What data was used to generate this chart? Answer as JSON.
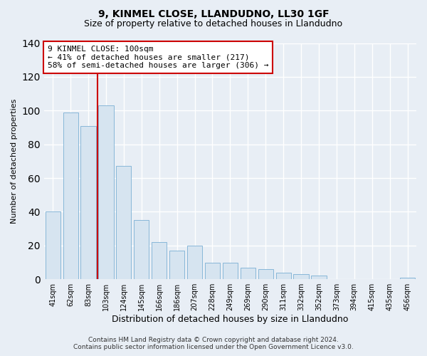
{
  "title": "9, KINMEL CLOSE, LLANDUDNO, LL30 1GF",
  "subtitle": "Size of property relative to detached houses in Llandudno",
  "xlabel": "Distribution of detached houses by size in Llandudno",
  "ylabel": "Number of detached properties",
  "bar_labels": [
    "41sqm",
    "62sqm",
    "83sqm",
    "103sqm",
    "124sqm",
    "145sqm",
    "166sqm",
    "186sqm",
    "207sqm",
    "228sqm",
    "249sqm",
    "269sqm",
    "290sqm",
    "311sqm",
    "332sqm",
    "352sqm",
    "373sqm",
    "394sqm",
    "415sqm",
    "435sqm",
    "456sqm"
  ],
  "bar_values": [
    40,
    99,
    91,
    103,
    67,
    35,
    22,
    17,
    20,
    10,
    10,
    7,
    6,
    4,
    3,
    2,
    0,
    0,
    0,
    0,
    1
  ],
  "bar_color_fill": "#d6e4f0",
  "bar_color_edge": "#7aafd4",
  "vline_index": 3,
  "vline_color": "#cc0000",
  "annotation_line1": "9 KINMEL CLOSE: 100sqm",
  "annotation_line2": "← 41% of detached houses are smaller (217)",
  "annotation_line3": "58% of semi-detached houses are larger (306) →",
  "annotation_box_color": "#ffffff",
  "annotation_box_edge": "#cc0000",
  "ylim": [
    0,
    140
  ],
  "yticks": [
    0,
    20,
    40,
    60,
    80,
    100,
    120,
    140
  ],
  "footer_line1": "Contains HM Land Registry data © Crown copyright and database right 2024.",
  "footer_line2": "Contains public sector information licensed under the Open Government Licence v3.0.",
  "bg_color": "#e8eef5",
  "plot_bg_color": "#e8eef5",
  "grid_color": "#ffffff",
  "title_fontsize": 10,
  "subtitle_fontsize": 9,
  "ylabel_fontsize": 8,
  "xlabel_fontsize": 9,
  "tick_fontsize": 7,
  "footer_fontsize": 6.5
}
